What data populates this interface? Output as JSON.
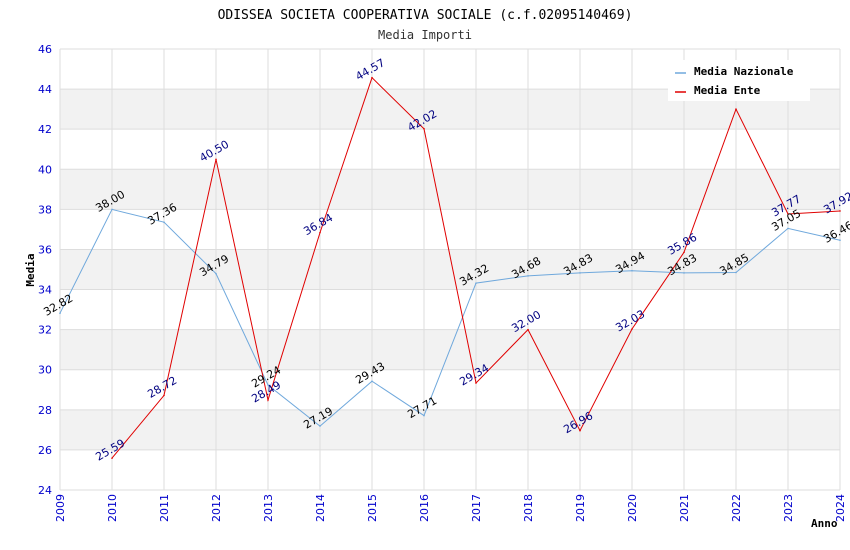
{
  "chart_data": {
    "type": "line",
    "title": "ODISSEA SOCIETA COOPERATIVA SOCIALE (c.f.02095140469)",
    "subtitle": "Media Importi",
    "xlabel": "Anno",
    "ylabel": "Media",
    "ylim": [
      24,
      46
    ],
    "yticks": [
      "24",
      "26",
      "28",
      "30",
      "32",
      "34",
      "36",
      "38",
      "40",
      "42",
      "44",
      "46"
    ],
    "categories": [
      "2009",
      "2010",
      "2011",
      "2012",
      "2013",
      "2014",
      "2015",
      "2016",
      "2017",
      "2018",
      "2019",
      "2020",
      "2021",
      "2022",
      "2023",
      "2024"
    ],
    "legend_position": "top-right",
    "series": [
      {
        "name": "Media Nazionale",
        "color": "#6fa8dc",
        "values": [
          32.82,
          38.0,
          37.36,
          34.79,
          29.24,
          27.19,
          29.43,
          27.71,
          34.32,
          34.68,
          34.83,
          34.94,
          34.83,
          34.85,
          37.05,
          36.46
        ],
        "labels": [
          "32.82",
          "38.00",
          "37.36",
          "34.79",
          "29.24",
          "27.19",
          "29.43",
          "27.71",
          "34.32",
          "34.68",
          "34.83",
          "34.94",
          "34.83",
          "34.85",
          "37.05",
          "36.46"
        ]
      },
      {
        "name": "Media Ente",
        "color": "#e00000",
        "values": [
          null,
          25.59,
          28.72,
          40.5,
          28.49,
          36.84,
          44.57,
          42.02,
          29.34,
          32.0,
          26.96,
          32.03,
          35.86,
          43.0,
          37.77,
          37.92
        ],
        "labels": [
          null,
          "25.59",
          "28.72",
          "40.50",
          "28.49",
          "36.84",
          "44.57",
          "42.02",
          "29.34",
          "32.00",
          "26.96",
          "32.03",
          "35.86",
          null,
          "37.77",
          "37.92"
        ]
      }
    ]
  }
}
